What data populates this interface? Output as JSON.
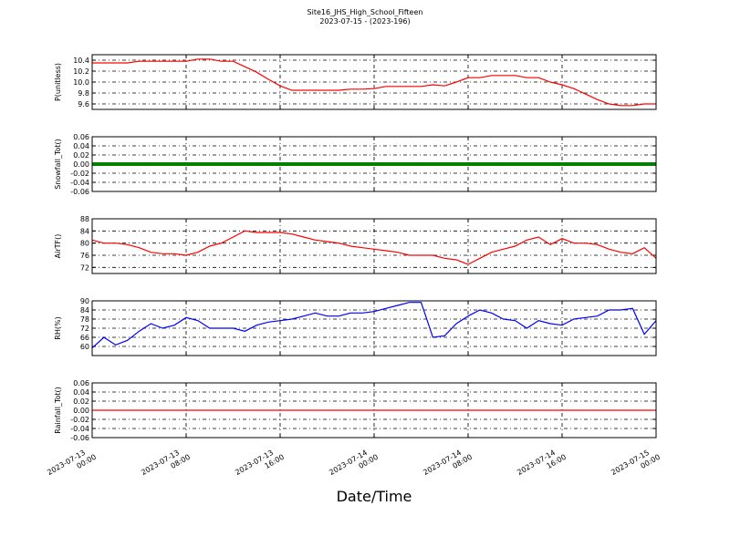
{
  "title": "Site16_JHS_High_School_Fifteen",
  "subtitle": "2023-07-15 - (2023-196)",
  "x_label": "Date/Time",
  "chart_data": [
    {
      "type": "line",
      "y_label": "P(unitless)",
      "color": "#ff0000",
      "ylim": [
        9.5,
        10.5
      ],
      "yticks": [
        9.6,
        9.8,
        {
          "value": 10,
          "label": "10.0"
        },
        10.2,
        10.4
      ],
      "xlim": [
        "2023-07-13 00:00",
        "2023-07-15 00:00"
      ],
      "xticks": [
        "2023-07-13 00:00",
        "2023-07-13 08:00",
        "2023-07-13 16:00",
        "2023-07-14 00:00",
        "2023-07-14 08:00",
        "2023-07-14 16:00",
        "2023-07-15 00:00"
      ],
      "x": [
        "2023-07-13 00:00",
        "2023-07-13 01:00",
        "2023-07-13 02:00",
        "2023-07-13 03:00",
        "2023-07-13 04:00",
        "2023-07-13 05:00",
        "2023-07-13 06:00",
        "2023-07-13 07:00",
        "2023-07-13 08:00",
        "2023-07-13 09:00",
        "2023-07-13 10:00",
        "2023-07-13 11:00",
        "2023-07-13 12:00",
        "2023-07-13 13:00",
        "2023-07-13 14:00",
        "2023-07-13 15:00",
        "2023-07-13 16:00",
        "2023-07-13 17:00",
        "2023-07-13 18:00",
        "2023-07-13 19:00",
        "2023-07-13 20:00",
        "2023-07-13 21:00",
        "2023-07-13 22:00",
        "2023-07-13 23:00",
        "2023-07-14 00:00",
        "2023-07-14 01:00",
        "2023-07-14 02:00",
        "2023-07-14 03:00",
        "2023-07-14 04:00",
        "2023-07-14 05:00",
        "2023-07-14 06:00",
        "2023-07-14 07:00",
        "2023-07-14 08:00",
        "2023-07-14 09:00",
        "2023-07-14 10:00",
        "2023-07-14 11:00",
        "2023-07-14 12:00",
        "2023-07-14 13:00",
        "2023-07-14 14:00",
        "2023-07-14 15:00",
        "2023-07-14 16:00",
        "2023-07-14 17:00",
        "2023-07-14 18:00",
        "2023-07-14 19:00",
        "2023-07-14 20:00",
        "2023-07-14 21:00",
        "2023-07-14 22:00",
        "2023-07-14 23:00",
        "2023-07-15 00:00"
      ],
      "values": [
        10.35,
        10.35,
        10.35,
        10.35,
        10.38,
        10.38,
        10.38,
        10.38,
        10.38,
        10.42,
        10.42,
        10.38,
        10.38,
        10.28,
        10.18,
        10.05,
        9.93,
        9.85,
        9.85,
        9.85,
        9.85,
        9.85,
        9.87,
        9.87,
        9.88,
        9.92,
        9.92,
        9.92,
        9.92,
        9.95,
        9.93,
        10.0,
        10.08,
        10.08,
        10.12,
        10.12,
        10.12,
        10.08,
        10.08,
        10.0,
        9.95,
        9.88,
        9.78,
        9.68,
        9.6,
        9.57,
        9.57,
        9.6,
        9.6
      ]
    },
    {
      "type": "line",
      "y_label": "Snowfall_Tot()",
      "color": "#008000",
      "marker": true,
      "ylim": [
        -0.06,
        0.06
      ],
      "yticks": [
        -0.06,
        -0.04,
        -0.02,
        {
          "value": 0,
          "label": "0.00"
        },
        0.02,
        0.04,
        0.06
      ],
      "xlim": [
        "2023-07-13 00:00",
        "2023-07-15 00:00"
      ],
      "xticks": [
        "2023-07-13 00:00",
        "2023-07-13 08:00",
        "2023-07-13 16:00",
        "2023-07-14 00:00",
        "2023-07-14 08:00",
        "2023-07-14 16:00",
        "2023-07-15 00:00"
      ],
      "x": [
        "2023-07-13 00:00",
        "2023-07-13 01:00",
        "2023-07-13 02:00",
        "2023-07-13 03:00",
        "2023-07-13 04:00",
        "2023-07-13 05:00",
        "2023-07-13 06:00",
        "2023-07-13 07:00",
        "2023-07-13 08:00",
        "2023-07-13 09:00",
        "2023-07-13 10:00",
        "2023-07-13 11:00",
        "2023-07-13 12:00",
        "2023-07-13 13:00",
        "2023-07-13 14:00",
        "2023-07-13 15:00",
        "2023-07-13 16:00",
        "2023-07-13 17:00",
        "2023-07-13 18:00",
        "2023-07-13 19:00",
        "2023-07-13 20:00",
        "2023-07-13 21:00",
        "2023-07-13 22:00",
        "2023-07-13 23:00",
        "2023-07-14 00:00",
        "2023-07-14 01:00",
        "2023-07-14 02:00",
        "2023-07-14 03:00",
        "2023-07-14 04:00",
        "2023-07-14 05:00",
        "2023-07-14 06:00",
        "2023-07-14 07:00",
        "2023-07-14 08:00",
        "2023-07-14 09:00",
        "2023-07-14 10:00",
        "2023-07-14 11:00",
        "2023-07-14 12:00",
        "2023-07-14 13:00",
        "2023-07-14 14:00",
        "2023-07-14 15:00",
        "2023-07-14 16:00",
        "2023-07-14 17:00",
        "2023-07-14 18:00",
        "2023-07-14 19:00",
        "2023-07-14 20:00",
        "2023-07-14 21:00",
        "2023-07-14 22:00",
        "2023-07-14 23:00",
        "2023-07-15 00:00"
      ],
      "values": [
        0,
        0,
        0,
        0,
        0,
        0,
        0,
        0,
        0,
        0,
        0,
        0,
        0,
        0,
        0,
        0,
        0,
        0,
        0,
        0,
        0,
        0,
        0,
        0,
        0,
        0,
        0,
        0,
        0,
        0,
        0,
        0,
        0,
        0,
        0,
        0,
        0,
        0,
        0,
        0,
        0,
        0,
        0,
        0,
        0,
        0,
        0,
        0,
        0
      ]
    },
    {
      "type": "line",
      "y_label": "AirTF()",
      "color": "#ff0000",
      "ylim": [
        70,
        88
      ],
      "yticks": [
        72,
        76,
        80,
        84,
        88
      ],
      "xlim": [
        "2023-07-13 00:00",
        "2023-07-15 00:00"
      ],
      "xticks": [
        "2023-07-13 00:00",
        "2023-07-13 08:00",
        "2023-07-13 16:00",
        "2023-07-14 00:00",
        "2023-07-14 08:00",
        "2023-07-14 16:00",
        "2023-07-15 00:00"
      ],
      "x": [
        "2023-07-13 00:00",
        "2023-07-13 01:00",
        "2023-07-13 02:00",
        "2023-07-13 03:00",
        "2023-07-13 04:00",
        "2023-07-13 05:00",
        "2023-07-13 06:00",
        "2023-07-13 07:00",
        "2023-07-13 08:00",
        "2023-07-13 09:00",
        "2023-07-13 10:00",
        "2023-07-13 11:00",
        "2023-07-13 12:00",
        "2023-07-13 13:00",
        "2023-07-13 14:00",
        "2023-07-13 15:00",
        "2023-07-13 16:00",
        "2023-07-13 17:00",
        "2023-07-13 18:00",
        "2023-07-13 19:00",
        "2023-07-13 20:00",
        "2023-07-13 21:00",
        "2023-07-13 22:00",
        "2023-07-13 23:00",
        "2023-07-14 00:00",
        "2023-07-14 01:00",
        "2023-07-14 02:00",
        "2023-07-14 03:00",
        "2023-07-14 04:00",
        "2023-07-14 05:00",
        "2023-07-14 06:00",
        "2023-07-14 07:00",
        "2023-07-14 08:00",
        "2023-07-14 09:00",
        "2023-07-14 10:00",
        "2023-07-14 11:00",
        "2023-07-14 12:00",
        "2023-07-14 13:00",
        "2023-07-14 14:00",
        "2023-07-14 15:00",
        "2023-07-14 16:00",
        "2023-07-14 17:00",
        "2023-07-14 18:00",
        "2023-07-14 19:00",
        "2023-07-14 20:00",
        "2023-07-14 21:00",
        "2023-07-14 22:00",
        "2023-07-14 23:00",
        "2023-07-15 00:00"
      ],
      "values": [
        81,
        80,
        80,
        79.5,
        78.5,
        77,
        76.5,
        76.5,
        76,
        77,
        79,
        80,
        82,
        84,
        83.5,
        83.5,
        83.5,
        83,
        82,
        81,
        80.5,
        80,
        79,
        78.5,
        78,
        77.5,
        77,
        76,
        76,
        76,
        75,
        74.5,
        73,
        75,
        77,
        78,
        79,
        81,
        82,
        79.5,
        81.5,
        80,
        80,
        79.5,
        78,
        77,
        76.5,
        78.5,
        75
      ]
    },
    {
      "type": "line",
      "y_label": "RH(%)",
      "color": "#0000ff",
      "ylim": [
        54,
        90
      ],
      "yticks": [
        60,
        66,
        72,
        78,
        84,
        90
      ],
      "xlim": [
        "2023-07-13 00:00",
        "2023-07-15 00:00"
      ],
      "xticks": [
        "2023-07-13 00:00",
        "2023-07-13 08:00",
        "2023-07-13 16:00",
        "2023-07-14 00:00",
        "2023-07-14 08:00",
        "2023-07-14 16:00",
        "2023-07-15 00:00"
      ],
      "x": [
        "2023-07-13 00:00",
        "2023-07-13 01:00",
        "2023-07-13 02:00",
        "2023-07-13 03:00",
        "2023-07-13 04:00",
        "2023-07-13 05:00",
        "2023-07-13 06:00",
        "2023-07-13 07:00",
        "2023-07-13 08:00",
        "2023-07-13 09:00",
        "2023-07-13 10:00",
        "2023-07-13 11:00",
        "2023-07-13 12:00",
        "2023-07-13 13:00",
        "2023-07-13 14:00",
        "2023-07-13 15:00",
        "2023-07-13 16:00",
        "2023-07-13 17:00",
        "2023-07-13 18:00",
        "2023-07-13 19:00",
        "2023-07-13 20:00",
        "2023-07-13 21:00",
        "2023-07-13 22:00",
        "2023-07-13 23:00",
        "2023-07-14 00:00",
        "2023-07-14 01:00",
        "2023-07-14 02:00",
        "2023-07-14 03:00",
        "2023-07-14 04:00",
        "2023-07-14 05:00",
        "2023-07-14 06:00",
        "2023-07-14 07:00",
        "2023-07-14 08:00",
        "2023-07-14 09:00",
        "2023-07-14 10:00",
        "2023-07-14 11:00",
        "2023-07-14 12:00",
        "2023-07-14 13:00",
        "2023-07-14 14:00",
        "2023-07-14 15:00",
        "2023-07-14 16:00",
        "2023-07-14 17:00",
        "2023-07-14 18:00",
        "2023-07-14 19:00",
        "2023-07-14 20:00",
        "2023-07-14 21:00",
        "2023-07-14 22:00",
        "2023-07-14 23:00",
        "2023-07-15 00:00"
      ],
      "values": [
        59,
        66,
        61,
        64,
        70,
        75,
        72,
        74,
        79,
        77,
        72,
        72,
        72,
        70,
        74,
        76,
        77,
        78,
        80,
        82,
        80,
        80,
        82,
        82,
        83,
        85,
        87,
        89,
        89,
        66,
        67,
        75,
        80,
        84,
        82,
        78,
        77,
        72,
        77,
        75,
        74,
        78,
        79,
        80,
        84,
        84,
        85,
        68,
        77
      ]
    },
    {
      "type": "line",
      "y_label": "Rainfall_Tot()",
      "color": "#ff0000",
      "ylim": [
        -0.06,
        0.06
      ],
      "yticks": [
        -0.06,
        -0.04,
        -0.02,
        {
          "value": 0,
          "label": "0.00"
        },
        0.02,
        0.04,
        0.06
      ],
      "xlim": [
        "2023-07-13 00:00",
        "2023-07-15 00:00"
      ],
      "xticks": [
        "2023-07-13 00:00",
        "2023-07-13 08:00",
        "2023-07-13 16:00",
        "2023-07-14 00:00",
        "2023-07-14 08:00",
        "2023-07-14 16:00",
        "2023-07-15 00:00"
      ],
      "x": [
        "2023-07-13 00:00",
        "2023-07-13 01:00",
        "2023-07-13 02:00",
        "2023-07-13 03:00",
        "2023-07-13 04:00",
        "2023-07-13 05:00",
        "2023-07-13 06:00",
        "2023-07-13 07:00",
        "2023-07-13 08:00",
        "2023-07-13 09:00",
        "2023-07-13 10:00",
        "2023-07-13 11:00",
        "2023-07-13 12:00",
        "2023-07-13 13:00",
        "2023-07-13 14:00",
        "2023-07-13 15:00",
        "2023-07-13 16:00",
        "2023-07-13 17:00",
        "2023-07-13 18:00",
        "2023-07-13 19:00",
        "2023-07-13 20:00",
        "2023-07-13 21:00",
        "2023-07-13 22:00",
        "2023-07-13 23:00",
        "2023-07-14 00:00",
        "2023-07-14 01:00",
        "2023-07-14 02:00",
        "2023-07-14 03:00",
        "2023-07-14 04:00",
        "2023-07-14 05:00",
        "2023-07-14 06:00",
        "2023-07-14 07:00",
        "2023-07-14 08:00",
        "2023-07-14 09:00",
        "2023-07-14 10:00",
        "2023-07-14 11:00",
        "2023-07-14 12:00",
        "2023-07-14 13:00",
        "2023-07-14 14:00",
        "2023-07-14 15:00",
        "2023-07-14 16:00",
        "2023-07-14 17:00",
        "2023-07-14 18:00",
        "2023-07-14 19:00",
        "2023-07-14 20:00",
        "2023-07-14 21:00",
        "2023-07-14 22:00",
        "2023-07-14 23:00",
        "2023-07-15 00:00"
      ],
      "values": [
        0,
        0,
        0,
        0,
        0,
        0,
        0,
        0,
        0,
        0,
        0,
        0,
        0,
        0,
        0,
        0,
        0,
        0,
        0,
        0,
        0,
        0,
        0,
        0,
        0,
        0,
        0,
        0,
        0,
        0,
        0,
        0,
        0,
        0,
        0,
        0,
        0,
        0,
        0,
        0,
        0,
        0,
        0,
        0,
        0,
        0,
        0,
        0,
        0
      ]
    }
  ]
}
